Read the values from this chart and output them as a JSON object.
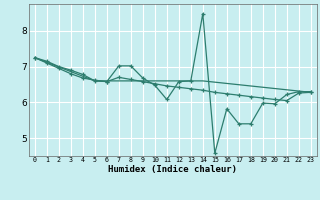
{
  "xlabel": "Humidex (Indice chaleur)",
  "bg_color": "#c8eef0",
  "grid_color": "#ffffff",
  "line_color": "#2d7d6e",
  "xlim": [
    -0.5,
    23.5
  ],
  "ylim": [
    4.5,
    8.75
  ],
  "xticks": [
    0,
    1,
    2,
    3,
    4,
    5,
    6,
    7,
    8,
    9,
    10,
    11,
    12,
    13,
    14,
    15,
    16,
    17,
    18,
    19,
    20,
    21,
    22,
    23
  ],
  "yticks": [
    5,
    6,
    7,
    8
  ],
  "series1_x": [
    0,
    1,
    2,
    3,
    4,
    5,
    6,
    7,
    8,
    9,
    10,
    11,
    12,
    13,
    14,
    15,
    16,
    17,
    18,
    19,
    20,
    21,
    22,
    23
  ],
  "series1_y": [
    7.25,
    7.15,
    7.0,
    6.9,
    6.78,
    6.6,
    6.58,
    7.02,
    7.02,
    6.68,
    6.48,
    6.08,
    6.58,
    6.6,
    8.48,
    4.58,
    5.82,
    5.4,
    5.4,
    5.98,
    5.96,
    6.22,
    6.3,
    6.3
  ],
  "series2_x": [
    0,
    1,
    2,
    3,
    4,
    5,
    6,
    7,
    8,
    9,
    10,
    11,
    12,
    13,
    14,
    15,
    16,
    17,
    18,
    19,
    20,
    21,
    22,
    23
  ],
  "series2_y": [
    7.25,
    7.1,
    6.95,
    6.8,
    6.68,
    6.62,
    6.58,
    6.7,
    6.64,
    6.58,
    6.52,
    6.46,
    6.42,
    6.38,
    6.34,
    6.28,
    6.24,
    6.2,
    6.16,
    6.12,
    6.08,
    6.05,
    6.26,
    6.28
  ],
  "series3_x": [
    0,
    5,
    14,
    23
  ],
  "series3_y": [
    7.25,
    6.6,
    6.6,
    6.28
  ]
}
